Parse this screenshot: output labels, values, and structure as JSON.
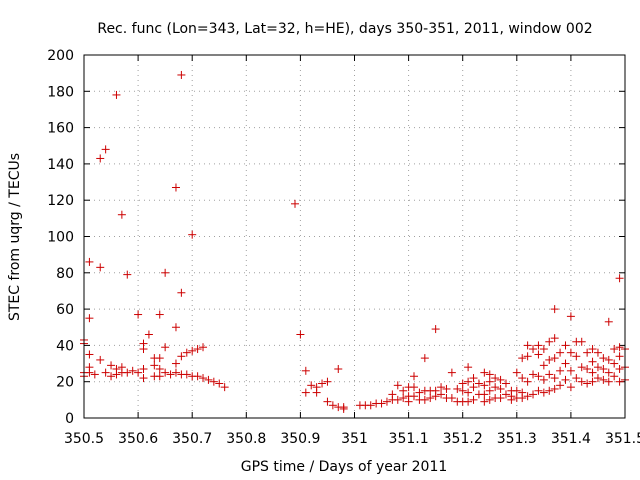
{
  "chart_data": {
    "type": "scatter",
    "title": "Rec. func (Lon=343, Lat=32, h=HE), days 350-351, 2011, window 002",
    "xlabel": "GPS time / Days of year 2011",
    "ylabel": "STEC from uqrg / TECUs",
    "xlim": [
      350.5,
      351.5
    ],
    "ylim": [
      0,
      200
    ],
    "xticks": [
      350.5,
      350.6,
      350.7,
      350.8,
      350.9,
      351,
      351.1,
      351.2,
      351.3,
      351.4,
      351.5
    ],
    "xtick_labels": [
      "350.5",
      "350.6",
      "350.7",
      "350.8",
      "350.9",
      "351",
      "351.1",
      "351.2",
      "351.3",
      "351.4",
      "351.5"
    ],
    "yticks": [
      0,
      20,
      40,
      60,
      80,
      100,
      120,
      140,
      160,
      180,
      200
    ],
    "ytick_labels": [
      "0",
      "20",
      "40",
      "60",
      "80",
      "100",
      "120",
      "140",
      "160",
      "180",
      "200"
    ],
    "grid": true,
    "marker": "+",
    "color": "#cc0000",
    "series": [
      {
        "name": "STEC",
        "points": [
          [
            350.5,
            43
          ],
          [
            350.5,
            41
          ],
          [
            350.5,
            25
          ],
          [
            350.5,
            23
          ],
          [
            350.51,
            55
          ],
          [
            350.51,
            86
          ],
          [
            350.51,
            35
          ],
          [
            350.51,
            28
          ],
          [
            350.51,
            25
          ],
          [
            350.52,
            24
          ],
          [
            350.53,
            143
          ],
          [
            350.53,
            83
          ],
          [
            350.53,
            32
          ],
          [
            350.54,
            25
          ],
          [
            350.54,
            148
          ],
          [
            350.55,
            29
          ],
          [
            350.55,
            23
          ],
          [
            350.56,
            178
          ],
          [
            350.56,
            24
          ],
          [
            350.56,
            27
          ],
          [
            350.57,
            112
          ],
          [
            350.57,
            25
          ],
          [
            350.57,
            28
          ],
          [
            350.58,
            25
          ],
          [
            350.58,
            79
          ],
          [
            350.59,
            26
          ],
          [
            350.6,
            57
          ],
          [
            350.6,
            25
          ],
          [
            350.61,
            41
          ],
          [
            350.61,
            38
          ],
          [
            350.61,
            27
          ],
          [
            350.61,
            22
          ],
          [
            350.62,
            46
          ],
          [
            350.63,
            33
          ],
          [
            350.63,
            29
          ],
          [
            350.63,
            23
          ],
          [
            350.64,
            57
          ],
          [
            350.64,
            33
          ],
          [
            350.64,
            27
          ],
          [
            350.64,
            23
          ],
          [
            350.65,
            80
          ],
          [
            350.65,
            39
          ],
          [
            350.65,
            25
          ],
          [
            350.66,
            24
          ],
          [
            350.67,
            127
          ],
          [
            350.67,
            50
          ],
          [
            350.67,
            30
          ],
          [
            350.67,
            25
          ],
          [
            350.68,
            189
          ],
          [
            350.68,
            69
          ],
          [
            350.68,
            34
          ],
          [
            350.68,
            24
          ],
          [
            350.69,
            36
          ],
          [
            350.69,
            24
          ],
          [
            350.7,
            101
          ],
          [
            350.7,
            37
          ],
          [
            350.7,
            23
          ],
          [
            350.71,
            38
          ],
          [
            350.71,
            23
          ],
          [
            350.72,
            39
          ],
          [
            350.72,
            22
          ],
          [
            350.73,
            21
          ],
          [
            350.74,
            20
          ],
          [
            350.75,
            19
          ],
          [
            350.76,
            17
          ],
          [
            350.89,
            118
          ],
          [
            350.9,
            46
          ],
          [
            350.91,
            26
          ],
          [
            350.91,
            14
          ],
          [
            350.92,
            18
          ],
          [
            350.93,
            17
          ],
          [
            350.93,
            14
          ],
          [
            350.94,
            19
          ],
          [
            350.95,
            20
          ],
          [
            350.95,
            9
          ],
          [
            350.96,
            7
          ],
          [
            350.97,
            27
          ],
          [
            350.97,
            6
          ],
          [
            350.98,
            6
          ],
          [
            350.98,
            5
          ],
          [
            351.01,
            7
          ],
          [
            351.02,
            7
          ],
          [
            351.03,
            7
          ],
          [
            351.04,
            8
          ],
          [
            351.05,
            8
          ],
          [
            351.06,
            9
          ],
          [
            351.07,
            10
          ],
          [
            351.07,
            13
          ],
          [
            351.08,
            18
          ],
          [
            351.08,
            10
          ],
          [
            351.09,
            15
          ],
          [
            351.09,
            11
          ],
          [
            351.1,
            17
          ],
          [
            351.1,
            12
          ],
          [
            351.1,
            9
          ],
          [
            351.11,
            23
          ],
          [
            351.11,
            17
          ],
          [
            351.11,
            12
          ],
          [
            351.12,
            14
          ],
          [
            351.12,
            10
          ],
          [
            351.13,
            33
          ],
          [
            351.13,
            15
          ],
          [
            351.13,
            10
          ],
          [
            351.14,
            15
          ],
          [
            351.14,
            11
          ],
          [
            351.15,
            49
          ],
          [
            351.15,
            15
          ],
          [
            351.15,
            12
          ],
          [
            351.16,
            17
          ],
          [
            351.16,
            13
          ],
          [
            351.17,
            16
          ],
          [
            351.17,
            11
          ],
          [
            351.18,
            25
          ],
          [
            351.18,
            11
          ],
          [
            351.19,
            16
          ],
          [
            351.19,
            9
          ],
          [
            351.2,
            19
          ],
          [
            351.2,
            15
          ],
          [
            351.2,
            9
          ],
          [
            351.21,
            28
          ],
          [
            351.21,
            20
          ],
          [
            351.21,
            14
          ],
          [
            351.21,
            9
          ],
          [
            351.22,
            22
          ],
          [
            351.22,
            17
          ],
          [
            351.22,
            10
          ],
          [
            351.23,
            19
          ],
          [
            351.23,
            13
          ],
          [
            351.24,
            25
          ],
          [
            351.24,
            18
          ],
          [
            351.24,
            13
          ],
          [
            351.24,
            9
          ],
          [
            351.25,
            24
          ],
          [
            351.25,
            20
          ],
          [
            351.25,
            15
          ],
          [
            351.25,
            10
          ],
          [
            351.26,
            22
          ],
          [
            351.26,
            17
          ],
          [
            351.26,
            11
          ],
          [
            351.27,
            21
          ],
          [
            351.27,
            16
          ],
          [
            351.27,
            11
          ],
          [
            351.28,
            19
          ],
          [
            351.28,
            13
          ],
          [
            351.29,
            15
          ],
          [
            351.29,
            12
          ],
          [
            351.29,
            10
          ],
          [
            351.3,
            25
          ],
          [
            351.3,
            15
          ],
          [
            351.3,
            11
          ],
          [
            351.31,
            33
          ],
          [
            351.31,
            22
          ],
          [
            351.31,
            14
          ],
          [
            351.31,
            11
          ],
          [
            351.32,
            40
          ],
          [
            351.32,
            34
          ],
          [
            351.32,
            20
          ],
          [
            351.32,
            12
          ],
          [
            351.33,
            38
          ],
          [
            351.33,
            24
          ],
          [
            351.33,
            13
          ],
          [
            351.34,
            40
          ],
          [
            351.34,
            35
          ],
          [
            351.34,
            23
          ],
          [
            351.34,
            15
          ],
          [
            351.35,
            38
          ],
          [
            351.35,
            29
          ],
          [
            351.35,
            21
          ],
          [
            351.35,
            14
          ],
          [
            351.36,
            42
          ],
          [
            351.36,
            32
          ],
          [
            351.36,
            24
          ],
          [
            351.36,
            15
          ],
          [
            351.37,
            60
          ],
          [
            351.37,
            44
          ],
          [
            351.37,
            33
          ],
          [
            351.37,
            22
          ],
          [
            351.37,
            16
          ],
          [
            351.38,
            36
          ],
          [
            351.38,
            26
          ],
          [
            351.38,
            18
          ],
          [
            351.39,
            40
          ],
          [
            351.39,
            30
          ],
          [
            351.39,
            21
          ],
          [
            351.4,
            56
          ],
          [
            351.4,
            36
          ],
          [
            351.4,
            26
          ],
          [
            351.4,
            17
          ],
          [
            351.41,
            42
          ],
          [
            351.41,
            34
          ],
          [
            351.41,
            22
          ],
          [
            351.42,
            42
          ],
          [
            351.42,
            28
          ],
          [
            351.42,
            20
          ],
          [
            351.43,
            36
          ],
          [
            351.43,
            27
          ],
          [
            351.43,
            19
          ],
          [
            351.44,
            38
          ],
          [
            351.44,
            31
          ],
          [
            351.44,
            25
          ],
          [
            351.44,
            20
          ],
          [
            351.45,
            36
          ],
          [
            351.45,
            28
          ],
          [
            351.45,
            22
          ],
          [
            351.46,
            33
          ],
          [
            351.46,
            27
          ],
          [
            351.46,
            21
          ],
          [
            351.47,
            53
          ],
          [
            351.47,
            32
          ],
          [
            351.47,
            25
          ],
          [
            351.47,
            20
          ],
          [
            351.48,
            38
          ],
          [
            351.48,
            30
          ],
          [
            351.48,
            23
          ],
          [
            351.49,
            77
          ],
          [
            351.49,
            39
          ],
          [
            351.49,
            34
          ],
          [
            351.49,
            27
          ],
          [
            351.49,
            20
          ],
          [
            351.5,
            38
          ],
          [
            351.5,
            28
          ],
          [
            351.5,
            21
          ]
        ]
      }
    ]
  }
}
